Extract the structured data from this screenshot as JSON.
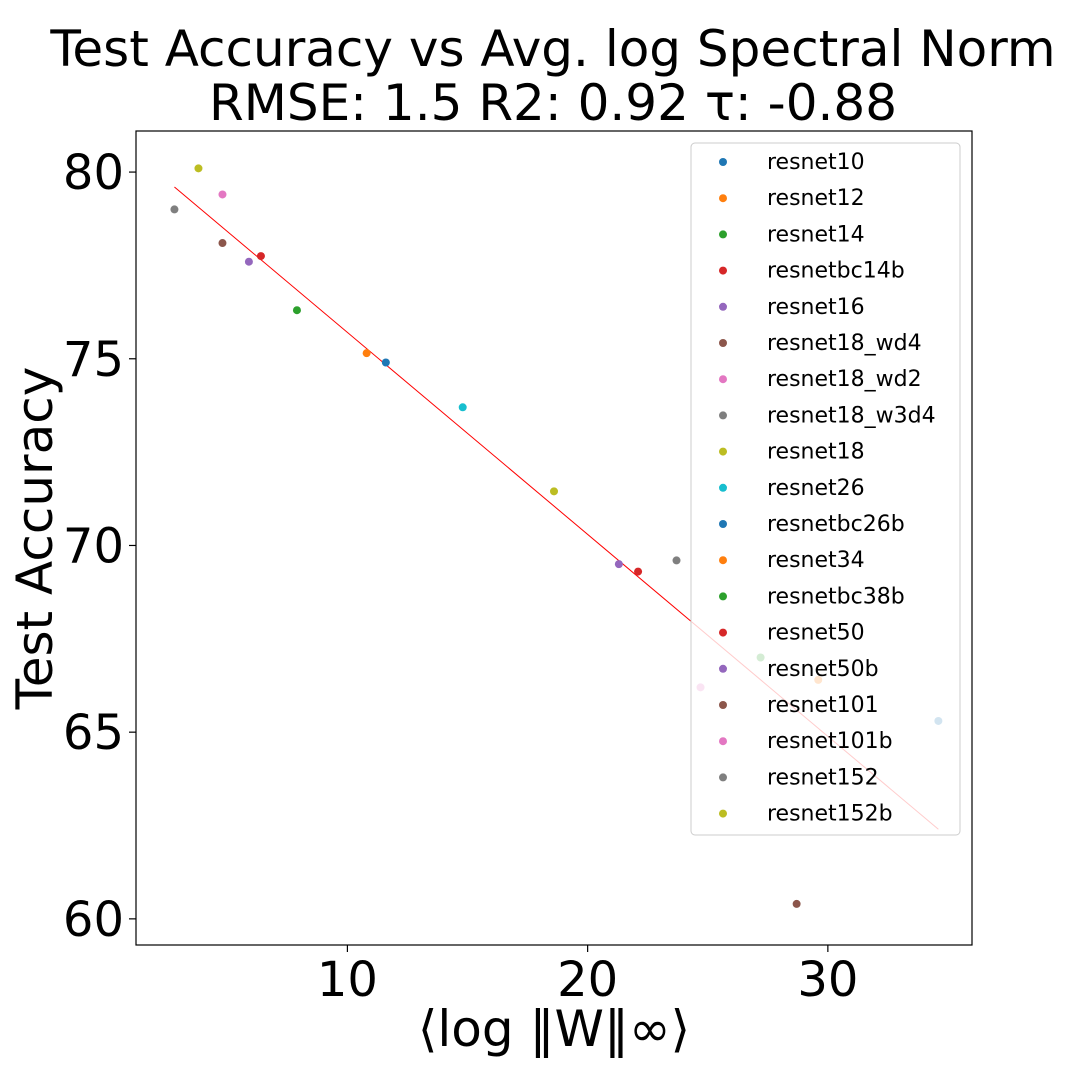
{
  "chart_data": {
    "type": "scatter",
    "title": "Test Accuracy vs Avg. log Spectral Norm",
    "subtitle": "RMSE: 1.5 R2: 0.92 τ: -0.88",
    "xlabel": "⟨log ‖W‖∞⟩",
    "ylabel": "Test Accuracy",
    "xlim": [
      1.2,
      36.0
    ],
    "ylim": [
      59.3,
      81.1
    ],
    "xticks": [
      10,
      20,
      30
    ],
    "yticks": [
      60,
      65,
      70,
      75,
      80
    ],
    "grid": false,
    "legend_position": "top-right",
    "series": [
      {
        "name": "resnet10",
        "color": "#1f77b4",
        "x": 11.6,
        "y": 74.9
      },
      {
        "name": "resnet12",
        "color": "#ff7f0e",
        "x": 10.8,
        "y": 75.15
      },
      {
        "name": "resnet14",
        "color": "#2ca02c",
        "x": 7.9,
        "y": 76.3
      },
      {
        "name": "resnetbc14b",
        "color": "#d62728",
        "x": 6.4,
        "y": 77.75
      },
      {
        "name": "resnet16",
        "color": "#9467bd",
        "x": 5.9,
        "y": 77.6
      },
      {
        "name": "resnet18_wd4",
        "color": "#8c564b",
        "x": 4.8,
        "y": 78.1
      },
      {
        "name": "resnet18_wd2",
        "color": "#e377c2",
        "x": 4.8,
        "y": 79.4
      },
      {
        "name": "resnet18_w3d4",
        "color": "#7f7f7f",
        "x": 2.8,
        "y": 79.0
      },
      {
        "name": "resnet18",
        "color": "#bcbd22",
        "x": 3.8,
        "y": 80.1
      },
      {
        "name": "resnet26",
        "color": "#17becf",
        "x": 14.8,
        "y": 73.7
      },
      {
        "name": "resnetbc26b",
        "color": "#1f77b4",
        "x": 34.6,
        "y": 65.3
      },
      {
        "name": "resnet34",
        "color": "#ff7f0e",
        "x": 29.6,
        "y": 66.4
      },
      {
        "name": "resnetbc38b",
        "color": "#2ca02c",
        "x": 27.2,
        "y": 67.0
      },
      {
        "name": "resnet50",
        "color": "#d62728",
        "x": 22.1,
        "y": 69.3
      },
      {
        "name": "resnet50b",
        "color": "#9467bd",
        "x": 21.3,
        "y": 69.5
      },
      {
        "name": "resnet101",
        "color": "#8c564b",
        "x": 28.7,
        "y": 60.4
      },
      {
        "name": "resnet101b",
        "color": "#e377c2",
        "x": 24.7,
        "y": 66.2
      },
      {
        "name": "resnet152",
        "color": "#7f7f7f",
        "x": 23.7,
        "y": 69.6
      },
      {
        "name": "resnet152b",
        "color": "#bcbd22",
        "x": 18.6,
        "y": 71.45
      }
    ],
    "fit_line": {
      "color": "#ff0000",
      "x": [
        2.8,
        34.6
      ],
      "y": [
        79.6,
        62.4
      ]
    }
  }
}
